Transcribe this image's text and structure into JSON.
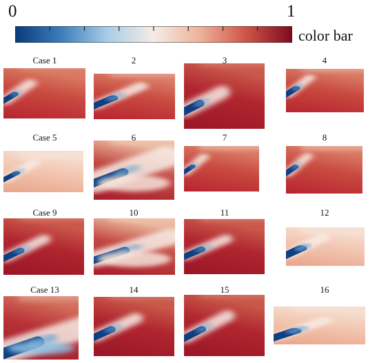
{
  "colorbar": {
    "min_label": "0",
    "max_label": "1",
    "title": "color bar",
    "stops": [
      "#0a3b7a",
      "#3c7dbc",
      "#a9cde6",
      "#f5ece6",
      "#eeb29a",
      "#cf5448",
      "#7e0a1e"
    ]
  },
  "panels": [
    {
      "label": "Case 1"
    },
    {
      "label": "2"
    },
    {
      "label": "3"
    },
    {
      "label": "4"
    },
    {
      "label": "Case 5"
    },
    {
      "label": "6"
    },
    {
      "label": "7"
    },
    {
      "label": "8"
    },
    {
      "label": "Case 9"
    },
    {
      "label": "10"
    },
    {
      "label": "11"
    },
    {
      "label": "12"
    },
    {
      "label": "Case 13"
    },
    {
      "label": "14"
    },
    {
      "label": "15"
    },
    {
      "label": "16"
    }
  ]
}
